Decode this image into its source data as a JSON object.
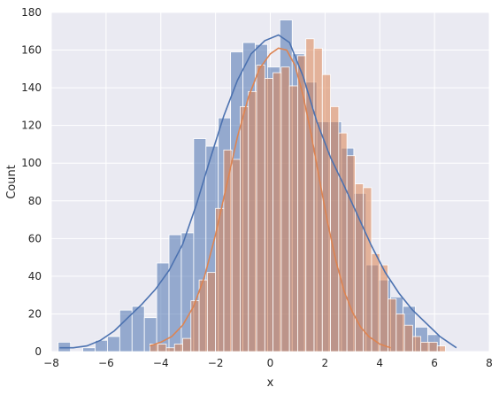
{
  "chart_data": {
    "type": "bar",
    "title": "",
    "xlabel": "x",
    "ylabel": "Count",
    "xlim": [
      -8,
      8
    ],
    "ylim": [
      0,
      180
    ],
    "xticks": [
      -8,
      -6,
      -4,
      -2,
      0,
      2,
      4,
      6,
      8
    ],
    "yticks": [
      0,
      20,
      40,
      60,
      80,
      100,
      120,
      140,
      160,
      180
    ],
    "grid": true,
    "background": "#eaeaf2",
    "series": [
      {
        "color": "#4c72b0",
        "bin_start": -7.75,
        "bin_width": 0.45,
        "counts": [
          5,
          0,
          2,
          6,
          8,
          22,
          24,
          18,
          47,
          62,
          63,
          113,
          109,
          124,
          159,
          164,
          163,
          151,
          176,
          158,
          143,
          122,
          122,
          108,
          84,
          46,
          38,
          29,
          24,
          13,
          9
        ],
        "kde": [
          [
            -7.7,
            2
          ],
          [
            -7.2,
            2
          ],
          [
            -6.7,
            3
          ],
          [
            -6.2,
            6
          ],
          [
            -5.7,
            11
          ],
          [
            -5.2,
            18
          ],
          [
            -4.7,
            25
          ],
          [
            -4.2,
            33
          ],
          [
            -3.7,
            43
          ],
          [
            -3.2,
            57
          ],
          [
            -2.7,
            78
          ],
          [
            -2.2,
            102
          ],
          [
            -1.7,
            125
          ],
          [
            -1.2,
            144
          ],
          [
            -0.7,
            158
          ],
          [
            -0.2,
            165
          ],
          [
            0.3,
            168
          ],
          [
            0.7,
            164
          ],
          [
            1.2,
            146
          ],
          [
            1.7,
            122
          ],
          [
            2.2,
            103
          ],
          [
            2.7,
            88
          ],
          [
            3.2,
            72
          ],
          [
            3.7,
            56
          ],
          [
            4.2,
            42
          ],
          [
            4.7,
            31
          ],
          [
            5.2,
            22
          ],
          [
            5.7,
            15
          ],
          [
            6.2,
            8
          ],
          [
            6.8,
            2
          ]
        ]
      },
      {
        "color": "#dd8452",
        "bin_start": -4.4,
        "bin_width": 0.3,
        "counts": [
          4,
          4,
          2,
          4,
          7,
          27,
          38,
          42,
          76,
          107,
          102,
          130,
          138,
          152,
          145,
          148,
          151,
          141,
          157,
          166,
          161,
          147,
          130,
          116,
          104,
          89,
          87,
          52,
          46,
          28,
          20,
          14,
          8,
          5,
          5,
          3
        ],
        "kde": [
          [
            -4.4,
            3
          ],
          [
            -4.0,
            5
          ],
          [
            -3.6,
            8
          ],
          [
            -3.2,
            14
          ],
          [
            -2.8,
            24
          ],
          [
            -2.4,
            40
          ],
          [
            -2.0,
            62
          ],
          [
            -1.6,
            88
          ],
          [
            -1.2,
            114
          ],
          [
            -0.8,
            135
          ],
          [
            -0.4,
            150
          ],
          [
            0.0,
            158
          ],
          [
            0.3,
            161
          ],
          [
            0.6,
            160
          ],
          [
            0.9,
            152
          ],
          [
            1.2,
            136
          ],
          [
            1.5,
            115
          ],
          [
            1.8,
            91
          ],
          [
            2.1,
            68
          ],
          [
            2.4,
            48
          ],
          [
            2.7,
            32
          ],
          [
            3.0,
            21
          ],
          [
            3.3,
            13
          ],
          [
            3.6,
            8
          ],
          [
            4.0,
            4
          ],
          [
            4.4,
            2
          ]
        ]
      }
    ]
  }
}
